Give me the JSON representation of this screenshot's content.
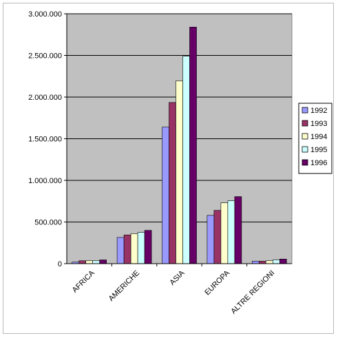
{
  "chart_data": {
    "type": "bar",
    "categories": [
      "AFRICA",
      "AMERICHE",
      "ASIA",
      "EUROPA",
      "ALTRE REGIONI"
    ],
    "series": [
      {
        "name": "1992",
        "color": "#9999FF",
        "values": [
          20000,
          315000,
          1640000,
          580000,
          30000
        ]
      },
      {
        "name": "1993",
        "color": "#993366",
        "values": [
          35000,
          345000,
          1935000,
          640000,
          30000
        ]
      },
      {
        "name": "1994",
        "color": "#FFFFCC",
        "values": [
          35000,
          360000,
          2195000,
          730000,
          35000
        ]
      },
      {
        "name": "1995",
        "color": "#CCFFFF",
        "values": [
          35000,
          375000,
          2490000,
          755000,
          45000
        ]
      },
      {
        "name": "1996",
        "color": "#660066",
        "values": [
          45000,
          400000,
          2840000,
          805000,
          55000
        ]
      }
    ],
    "yticks": [
      "0",
      "500.000",
      "1.000.000",
      "1.500.000",
      "2.000.000",
      "2.500.000",
      "3.000.000"
    ],
    "ylim": [
      0,
      3000000
    ],
    "grid": true,
    "legend": "right",
    "plot_background": "#C0C0C0"
  }
}
